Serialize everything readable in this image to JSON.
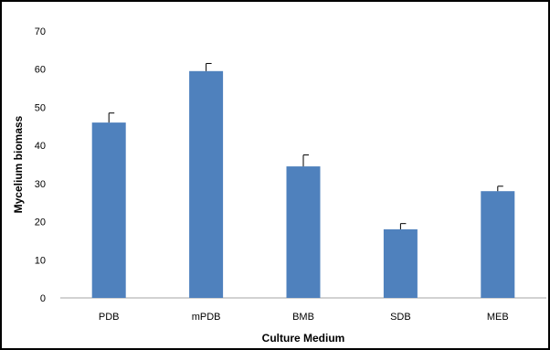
{
  "chart_data": {
    "type": "bar",
    "title": "",
    "xlabel": "Culture Medium",
    "ylabel": "Mycelium biomass",
    "categories": [
      "PDB",
      "mPDB",
      "BMB",
      "SDB",
      "MEB"
    ],
    "values": [
      46,
      59.5,
      34.5,
      18,
      28
    ],
    "error": [
      2.5,
      2,
      3,
      1.5,
      1.3
    ],
    "ylim": [
      0,
      70
    ],
    "yticks": [
      "0",
      "10",
      "20",
      "30",
      "40",
      "50",
      "60",
      "70"
    ],
    "grid": false,
    "legend": "none",
    "colors": {
      "bar": "#4F81BD",
      "error_bar": "#000000",
      "axis": "#A6A6A6",
      "text": "#000000"
    }
  }
}
